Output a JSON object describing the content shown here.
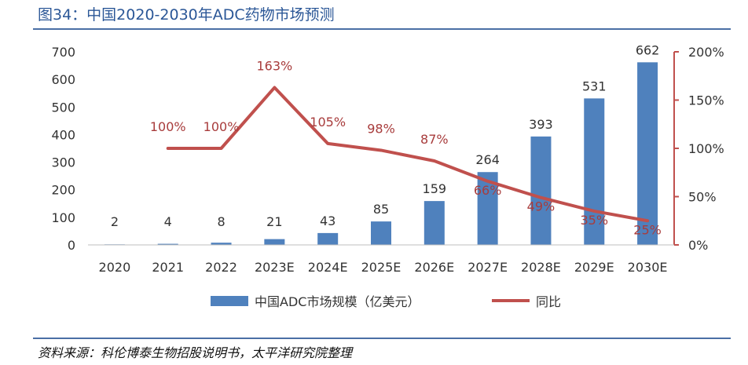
{
  "header": {
    "title": "图34：中国2020-2030年ADC药物市场预测"
  },
  "footer": {
    "source": "资料来源：科伦博泰生物招股说明书，太平洋研究院整理"
  },
  "colors": {
    "bar": "#4f81bd",
    "line": "#c0504d",
    "right_axis": "#c0504d",
    "title": "#2b5797"
  },
  "chart_data": {
    "type": "bar",
    "categories": [
      "2020",
      "2021",
      "2022",
      "2023E",
      "2024E",
      "2025E",
      "2026E",
      "2027E",
      "2028E",
      "2029E",
      "2030E"
    ],
    "series": [
      {
        "name": "中国ADC市场规模（亿美元）",
        "type": "bar",
        "axis": "left",
        "values": [
          2,
          4,
          8,
          21,
          43,
          85,
          159,
          264,
          393,
          531,
          662
        ],
        "labels": [
          "2",
          "4",
          "8",
          "21",
          "43",
          "85",
          "159",
          "264",
          "393",
          "531",
          "662"
        ]
      },
      {
        "name": "同比",
        "type": "line",
        "axis": "right",
        "values": [
          null,
          100,
          100,
          163,
          105,
          98,
          87,
          66,
          49,
          35,
          25
        ],
        "labels": [
          "",
          "100%",
          "100%",
          "163%",
          "105%",
          "98%",
          "87%",
          "66%",
          "49%",
          "35%",
          "25%"
        ]
      }
    ],
    "y_left": {
      "ylim": [
        0,
        700
      ],
      "ticks": [
        "0",
        "100",
        "200",
        "300",
        "400",
        "500",
        "600",
        "700"
      ]
    },
    "y_right": {
      "ylim": [
        0,
        200
      ],
      "ticks": [
        "0%",
        "50%",
        "100%",
        "150%",
        "200%"
      ]
    },
    "grid": false,
    "legend_position": "bottom"
  }
}
